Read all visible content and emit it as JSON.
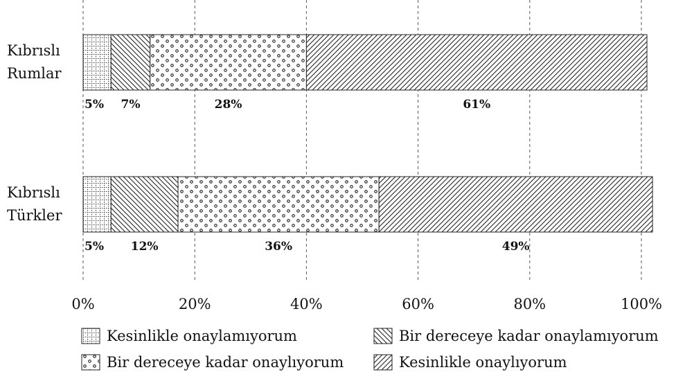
{
  "chart_data": {
    "type": "bar",
    "orientation": "horizontal",
    "stacked": true,
    "categories": [
      [
        "Kıbrıslı",
        "Rumlar"
      ],
      [
        "Kıbrıslı",
        "Türkler"
      ]
    ],
    "series": [
      {
        "name": "Kesinlikle onaylamıyorum",
        "values": [
          5,
          5
        ],
        "value_labels": [
          "5%",
          "5%"
        ],
        "pattern": "grid"
      },
      {
        "name": "Bir dereceye kadar onaylamıyorum",
        "values": [
          7,
          12
        ],
        "value_labels": [
          "7%",
          "12%"
        ],
        "pattern": "back-diagonal"
      },
      {
        "name": "Bir dereceye kadar onaylıyorum",
        "values": [
          28,
          36
        ],
        "value_labels": [
          "28%",
          "36%"
        ],
        "pattern": "circles"
      },
      {
        "name": "Kesinlikle onaylıyorum",
        "values": [
          61,
          49
        ],
        "value_labels": [
          "61%",
          "49%"
        ],
        "pattern": "forward-diagonal"
      }
    ],
    "x_ticks": [
      "0%",
      "20%",
      "40%",
      "60%",
      "80%",
      "100%"
    ],
    "xlim": [
      0,
      100
    ],
    "grid": "vertical dashed",
    "legend_position": "bottom",
    "title": "",
    "xlabel": "",
    "ylabel": ""
  }
}
